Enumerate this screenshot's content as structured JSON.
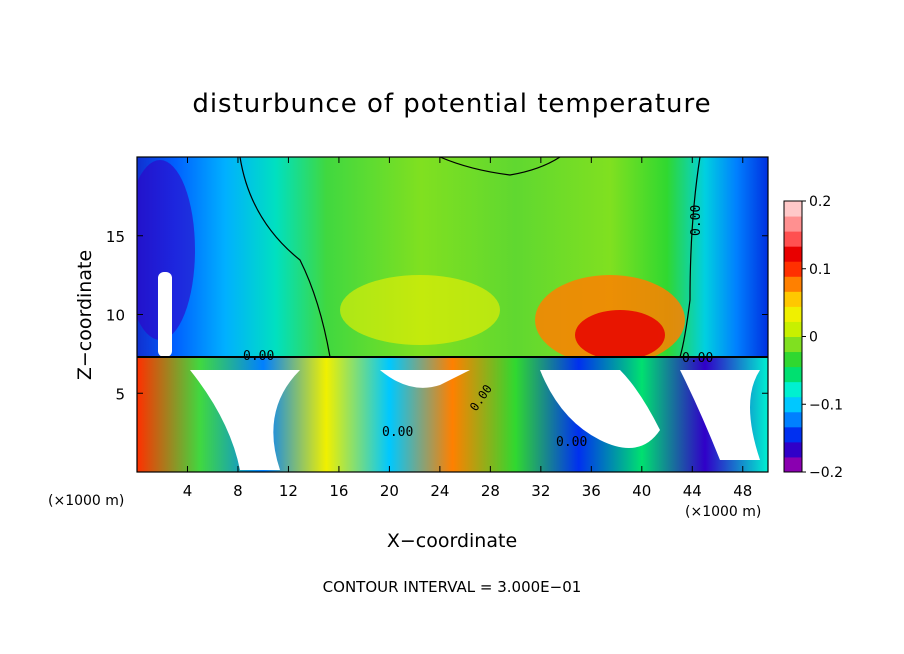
{
  "chart_data": {
    "type": "heatmap",
    "title": "disturbunce of potential temperature",
    "xlabel": "X−coordinate",
    "ylabel": "Z−coordinate",
    "x_unit": "(×1000 m)",
    "xlim": [
      0,
      50
    ],
    "ylim": [
      0,
      20
    ],
    "x_ticks": [
      4,
      8,
      12,
      16,
      20,
      24,
      28,
      32,
      36,
      40,
      44,
      48
    ],
    "y_ticks": [
      5,
      10,
      15
    ],
    "colorbar": {
      "vmin": -0.2,
      "vmax": 0.2,
      "ticks": [
        {
          "value": 0.2,
          "label": "0.2"
        },
        {
          "value": 0.1,
          "label": "0.1"
        },
        {
          "value": 0,
          "label": "0"
        },
        {
          "value": -0.1,
          "label": "−0.1"
        },
        {
          "value": -0.2,
          "label": "−0.2"
        }
      ],
      "colors": [
        "#8a00b0",
        "#3000c8",
        "#0030f0",
        "#0080ff",
        "#00c8ff",
        "#00f0d0",
        "#00e070",
        "#30d830",
        "#80e020",
        "#c8f000",
        "#f0f000",
        "#ffc800",
        "#ff8000",
        "#ff3000",
        "#e80000",
        "#ff5050",
        "#ff9090",
        "#ffc8c8"
      ]
    },
    "contour_labels": [
      "0.00",
      "0.00",
      "0.00",
      "0.00",
      "0.00",
      "0.00"
    ],
    "footer": "CONTOUR INTERVAL = 3.000E−01"
  }
}
